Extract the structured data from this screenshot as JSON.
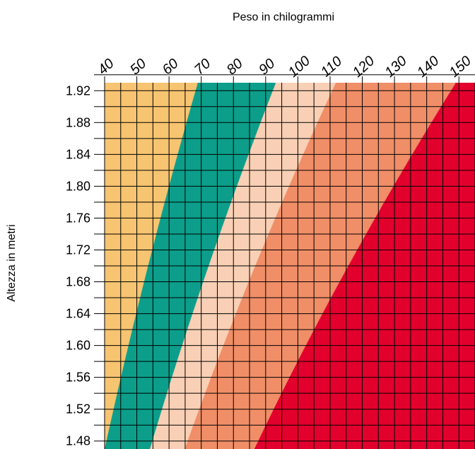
{
  "chart_data": {
    "type": "heatmap",
    "title": "",
    "xlabel": "Peso in chilogrammi",
    "ylabel": "Altezza in metri",
    "x_ticks": [
      "40",
      "50",
      "60",
      "70",
      "80",
      "90",
      "100",
      "110",
      "120",
      "130",
      "140",
      "150"
    ],
    "y_ticks": [
      "1.92",
      "1.88",
      "1.84",
      "1.80",
      "1.76",
      "1.72",
      "1.68",
      "1.64",
      "1.60",
      "1.56",
      "1.52",
      "1.48"
    ],
    "xlim": [
      40,
      155
    ],
    "ylim": [
      1.47,
      1.93
    ],
    "grid": true,
    "bmi_boundaries": [
      18.5,
      25,
      30,
      40
    ],
    "zones": [
      {
        "range": [
          0,
          18.5
        ],
        "color": "#F7C471"
      },
      {
        "range": [
          18.5,
          25
        ],
        "color": "#0C9E8A"
      },
      {
        "range": [
          25,
          30
        ],
        "color": "#F9D0B5"
      },
      {
        "range": [
          30,
          40
        ],
        "color": "#F08E68"
      },
      {
        "range": [
          40,
          100
        ],
        "color": "#E2002C"
      }
    ]
  }
}
